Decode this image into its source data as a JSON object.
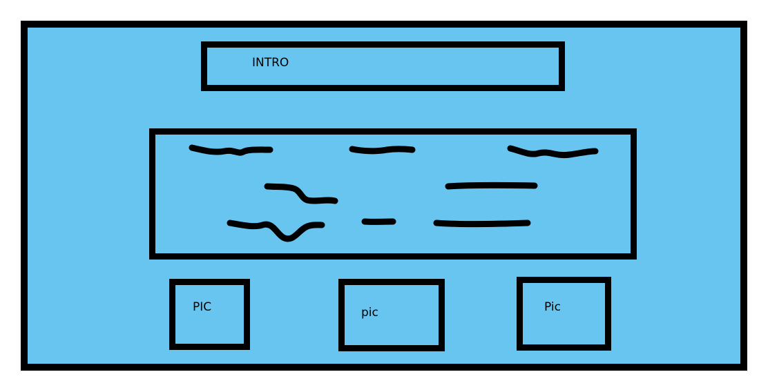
{
  "colors": {
    "background": "#67c5f0",
    "border": "#000000",
    "page": "#ffffff"
  },
  "intro": {
    "label": "INTRO"
  },
  "pictures": [
    {
      "label": "PIC"
    },
    {
      "label": "pic"
    },
    {
      "label": "Pic"
    }
  ]
}
